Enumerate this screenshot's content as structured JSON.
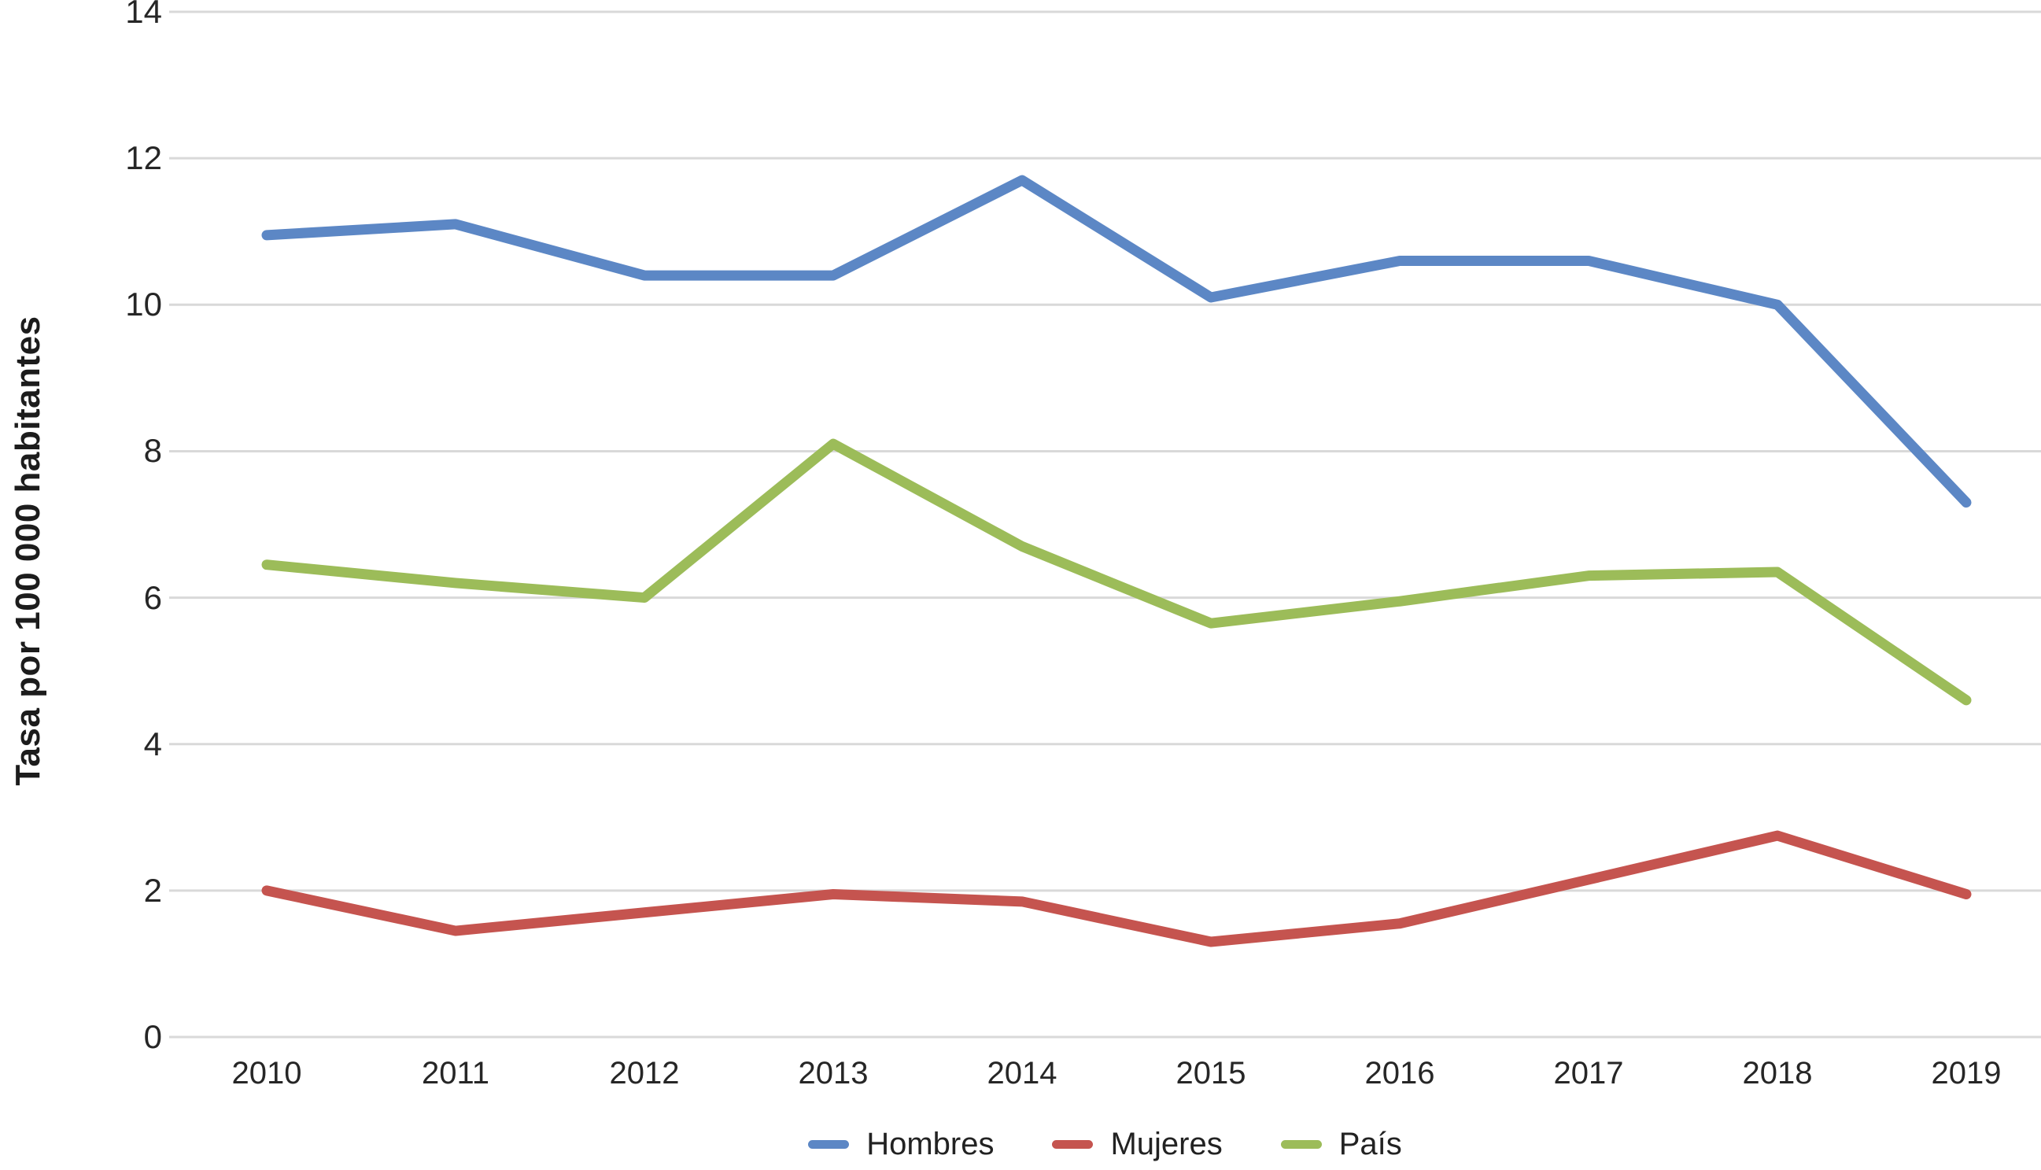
{
  "chart_data": {
    "type": "line",
    "title": "",
    "xlabel": "",
    "ylabel": "Tasa por 100 000 habitantes",
    "x": [
      "2010",
      "2011",
      "2012",
      "2013",
      "2014",
      "2015",
      "2016",
      "2017",
      "2018",
      "2019"
    ],
    "series": [
      {
        "name": "Hombres",
        "color": "#5c87c5",
        "values": [
          10.95,
          11.1,
          10.4,
          10.4,
          11.7,
          10.1,
          10.6,
          10.6,
          10.0,
          7.3
        ]
      },
      {
        "name": "Mujeres",
        "color": "#c5544f",
        "values": [
          2.0,
          1.45,
          1.7,
          1.95,
          1.85,
          1.3,
          1.55,
          2.15,
          2.75,
          1.95
        ]
      },
      {
        "name": "País",
        "color": "#9cbc59",
        "values": [
          6.45,
          6.2,
          6.0,
          8.1,
          6.7,
          5.65,
          5.95,
          6.3,
          6.35,
          4.6
        ]
      }
    ],
    "ylim": [
      0,
      14
    ],
    "yticks": [
      0,
      2,
      4,
      6,
      8,
      10,
      12,
      14
    ],
    "grid": "horizontal",
    "gridline_color": "#d9d9d9",
    "tick_color": "#262626",
    "legend_position": "bottom"
  }
}
